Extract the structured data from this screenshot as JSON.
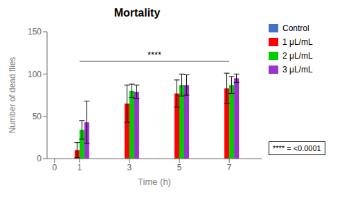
{
  "chart_data": {
    "type": "bar",
    "title": "Mortality",
    "xlabel": "Time (h)",
    "ylabel": "Number of dead flies",
    "x": [
      1,
      3,
      5,
      7
    ],
    "xlim": [
      -0.3,
      8.3
    ],
    "xticks": [
      0,
      1,
      3,
      5,
      7
    ],
    "ylim": [
      0,
      150
    ],
    "yticks": [
      0,
      50,
      100,
      150
    ],
    "grid": false,
    "legend": "right",
    "series": [
      {
        "name": "Control",
        "color": "#4472C4",
        "values": [
          0,
          0,
          0,
          0
        ],
        "errors": [
          0,
          0,
          0,
          0
        ]
      },
      {
        "name": "1 μL/mL",
        "color": "#FF0000",
        "values": [
          10,
          65,
          77,
          83
        ],
        "errors": [
          9,
          22,
          16,
          18
        ]
      },
      {
        "name": "2 μL/mL",
        "color": "#00CC00",
        "values": [
          34,
          80,
          87,
          87
        ],
        "errors": [
          11,
          8,
          13,
          10
        ]
      },
      {
        "name": "3 μL/mL",
        "color": "#9933CC",
        "values": [
          43,
          79,
          87,
          95
        ],
        "errors": [
          25,
          8,
          12,
          5
        ]
      }
    ],
    "significance": {
      "label": "****",
      "x": [
        1,
        7
      ],
      "y": 115,
      "note": "**** = <0.0001"
    }
  }
}
